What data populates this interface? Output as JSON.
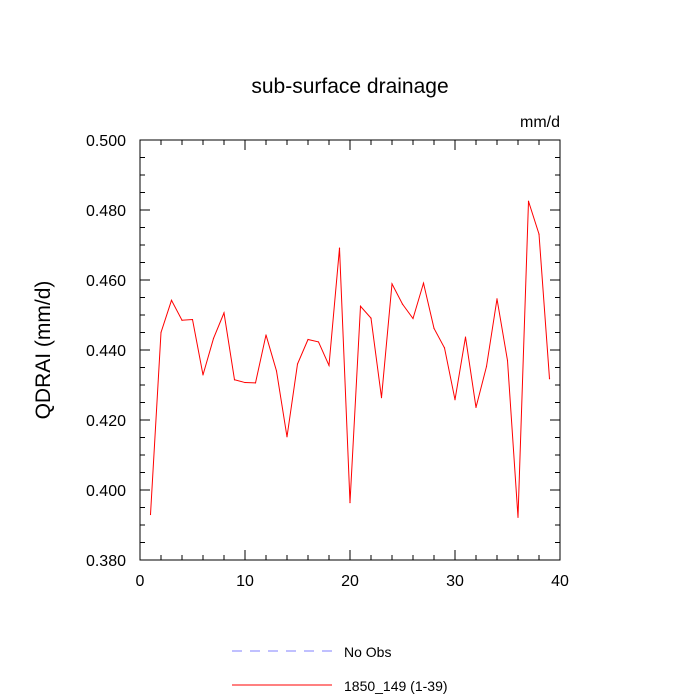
{
  "chart_data": {
    "type": "line",
    "title": "sub-surface drainage",
    "units_label": "mm/d",
    "ylabel": "QDRAI  (mm/d)",
    "xlabel": "",
    "xlim": [
      0,
      40
    ],
    "ylim": [
      0.38,
      0.5
    ],
    "x_ticks": [
      0,
      10,
      20,
      30,
      40
    ],
    "x_tick_labels": [
      "0",
      "10",
      "20",
      "30",
      "40"
    ],
    "y_ticks": [
      0.38,
      0.4,
      0.42,
      0.44,
      0.46,
      0.48,
      0.5
    ],
    "y_tick_labels": [
      "0.380",
      "0.400",
      "0.420",
      "0.440",
      "0.460",
      "0.480",
      "0.500"
    ],
    "grid": false,
    "legend_position": "bottom-center",
    "legend": [
      {
        "label": "No Obs",
        "color": "#8080ff",
        "style": "dashed"
      },
      {
        "label": "1850_149 (1-39)",
        "color": "#ff0000",
        "style": "solid"
      }
    ],
    "series": [
      {
        "name": "1850_149 (1-39)",
        "color": "#ff0000",
        "x": [
          1,
          2,
          3,
          4,
          5,
          6,
          7,
          8,
          9,
          10,
          11,
          12,
          13,
          14,
          15,
          16,
          17,
          18,
          19,
          20,
          21,
          22,
          23,
          24,
          25,
          26,
          27,
          28,
          29,
          30,
          31,
          32,
          33,
          34,
          35,
          36,
          37,
          38,
          39
        ],
        "values": [
          0.393,
          0.445,
          0.4542,
          0.4485,
          0.4487,
          0.4329,
          0.4433,
          0.4506,
          0.4315,
          0.4307,
          0.4306,
          0.4443,
          0.434,
          0.4152,
          0.436,
          0.443,
          0.4423,
          0.4356,
          0.4691,
          0.3964,
          0.4525,
          0.4491,
          0.4264,
          0.4589,
          0.4531,
          0.449,
          0.4591,
          0.4462,
          0.4406,
          0.4258,
          0.4437,
          0.4236,
          0.4353,
          0.4546,
          0.437,
          0.3922,
          0.4825,
          0.4731,
          0.4318
        ]
      }
    ]
  }
}
